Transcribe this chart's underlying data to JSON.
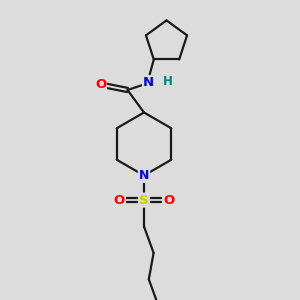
{
  "background_color": "#dcdcdc",
  "bond_color": "#1a1a1a",
  "atom_colors": {
    "O": "#ff0000",
    "N": "#0000ee",
    "S": "#cccc00",
    "H": "#008080",
    "C": "#1a1a1a"
  },
  "figsize": [
    3.0,
    3.0
  ],
  "dpi": 100,
  "lw": 1.6
}
